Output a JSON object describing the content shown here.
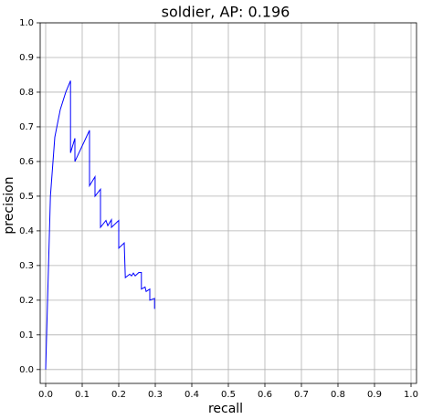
{
  "chart_data": {
    "type": "line",
    "title": "soldier, AP: 0.196",
    "xlabel": "recall",
    "ylabel": "precision",
    "color": "#0000ff",
    "grid": true,
    "x": [
      0,
      0.013,
      0.025,
      0.04,
      0.055,
      0.068,
      0.068,
      0.08,
      0.08,
      0.12,
      0.12,
      0.135,
      0.135,
      0.15,
      0.15,
      0.165,
      0.17,
      0.18,
      0.18,
      0.2,
      0.2,
      0.215,
      0.218,
      0.23,
      0.235,
      0.24,
      0.245,
      0.255,
      0.262,
      0.262,
      0.272,
      0.275,
      0.285,
      0.285,
      0.298,
      0.298
    ],
    "values": [
      0,
      0.5,
      0.67,
      0.75,
      0.8,
      0.833,
      0.625,
      0.667,
      0.6,
      0.69,
      0.53,
      0.556,
      0.5,
      0.52,
      0.41,
      0.43,
      0.415,
      0.432,
      0.41,
      0.43,
      0.35,
      0.365,
      0.265,
      0.275,
      0.27,
      0.278,
      0.27,
      0.28,
      0.28,
      0.232,
      0.238,
      0.225,
      0.232,
      0.2,
      0.205,
      0.175
    ],
    "xlim": [
      -0.015,
      1.015
    ],
    "ylim": [
      -0.04,
      1.0
    ],
    "xticks": [
      {
        "value": 0,
        "label": "0.0"
      },
      0.1,
      0.2,
      0.3,
      0.4,
      0.5,
      0.6,
      0.7,
      0.8,
      0.9,
      {
        "value": 1,
        "label": "1.0"
      }
    ],
    "yticks": [
      {
        "value": 0,
        "label": "0.0"
      },
      0.1,
      0.2,
      0.3,
      0.4,
      0.5,
      0.6,
      0.7,
      0.8,
      0.9,
      {
        "value": 1,
        "label": "1.0"
      }
    ]
  }
}
